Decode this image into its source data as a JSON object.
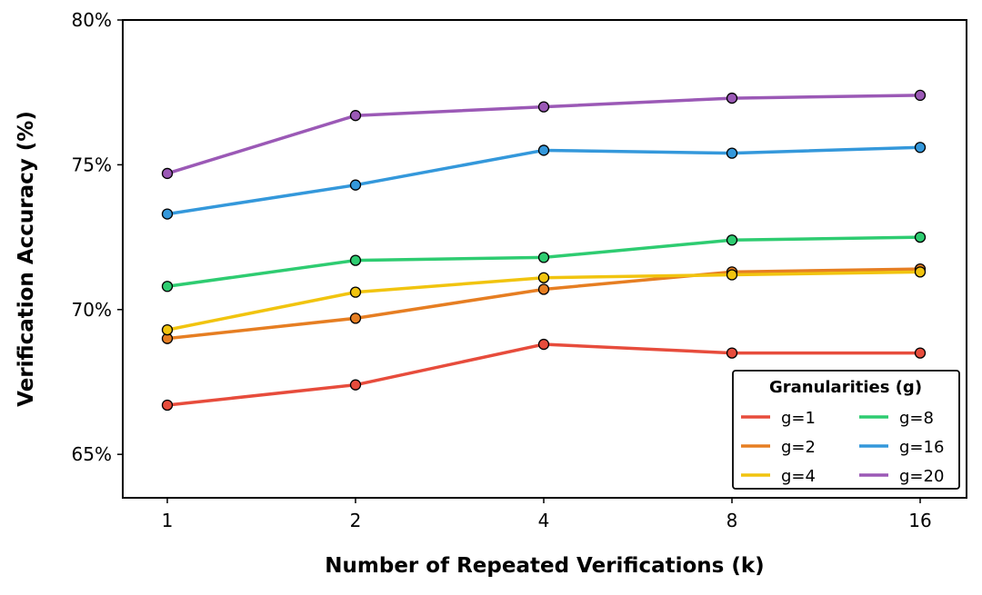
{
  "chart_data": {
    "type": "line",
    "title": "",
    "xlabel": "Number of Repeated Verifications (k)",
    "ylabel": "Verification Accuracy (%)",
    "x": [
      1,
      2,
      4,
      8,
      16
    ],
    "x_tick_labels": [
      "1",
      "2",
      "4",
      "8",
      "16"
    ],
    "x_scale": "log2",
    "ylim": [
      63.5,
      80
    ],
    "y_ticks": [
      65,
      70,
      75,
      80
    ],
    "y_tick_labels": [
      "65%",
      "70%",
      "75%",
      "80%"
    ],
    "grid": false,
    "legend": {
      "title": "Granularities (g)",
      "placement": "bottom-right",
      "columns": 2
    },
    "series": [
      {
        "name": "g=1",
        "color": "#e74c3c",
        "values": [
          66.7,
          67.4,
          68.8,
          68.5,
          68.5
        ]
      },
      {
        "name": "g=2",
        "color": "#e67e22",
        "values": [
          69.0,
          69.7,
          70.7,
          71.3,
          71.4
        ]
      },
      {
        "name": "g=4",
        "color": "#f1c40f",
        "values": [
          69.3,
          70.6,
          71.1,
          71.2,
          71.3
        ]
      },
      {
        "name": "g=8",
        "color": "#2ecc71",
        "values": [
          70.8,
          71.7,
          71.8,
          72.4,
          72.5
        ]
      },
      {
        "name": "g=16",
        "color": "#3498db",
        "values": [
          73.3,
          74.3,
          75.5,
          75.4,
          75.6
        ]
      },
      {
        "name": "g=20",
        "color": "#9b59b6",
        "values": [
          74.7,
          76.7,
          77.0,
          77.3,
          77.4
        ]
      }
    ]
  }
}
